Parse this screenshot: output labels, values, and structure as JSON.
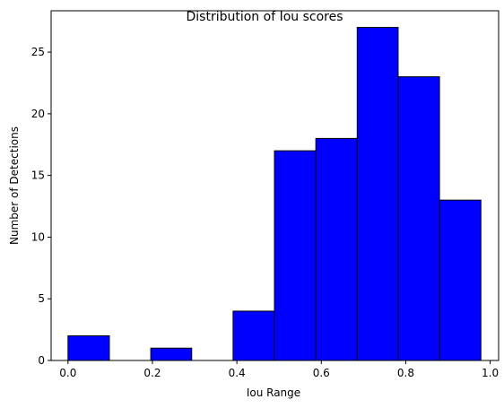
{
  "chart_data": {
    "type": "histogram",
    "title": "Distribution of Iou scores",
    "xlabel": "Iou Range",
    "ylabel": "Number of Detections",
    "xlim": [
      -0.04,
      1.02
    ],
    "ylim": [
      0,
      28.35
    ],
    "x_ticks": [
      0.0,
      0.2,
      0.4,
      0.6,
      0.8,
      1.0
    ],
    "x_tick_labels": [
      "0.0",
      "0.2",
      "0.4",
      "0.6",
      "0.8",
      "1.0"
    ],
    "y_ticks": [
      0,
      5,
      10,
      15,
      20,
      25
    ],
    "y_tick_labels": [
      "0",
      "5",
      "10",
      "15",
      "20",
      "25"
    ],
    "bin_edges": [
      0.0,
      0.098,
      0.196,
      0.293,
      0.391,
      0.489,
      0.587,
      0.685,
      0.782,
      0.88,
      0.978
    ],
    "values": [
      2,
      0,
      1,
      0,
      4,
      17,
      18,
      27,
      23,
      13
    ],
    "bar_color": "#0000ff",
    "edge_color": "#000000",
    "grid": false,
    "legend": false
  }
}
